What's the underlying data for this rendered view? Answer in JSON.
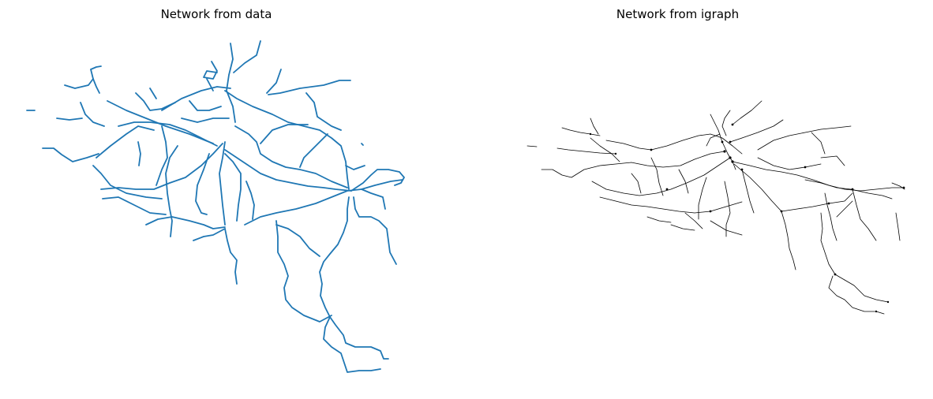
{
  "figure": {
    "left_panel": {
      "title": "Network from data",
      "line_color": "#1f77b4"
    },
    "right_panel": {
      "title": "Network from igraph",
      "line_color": "#000000"
    }
  }
}
